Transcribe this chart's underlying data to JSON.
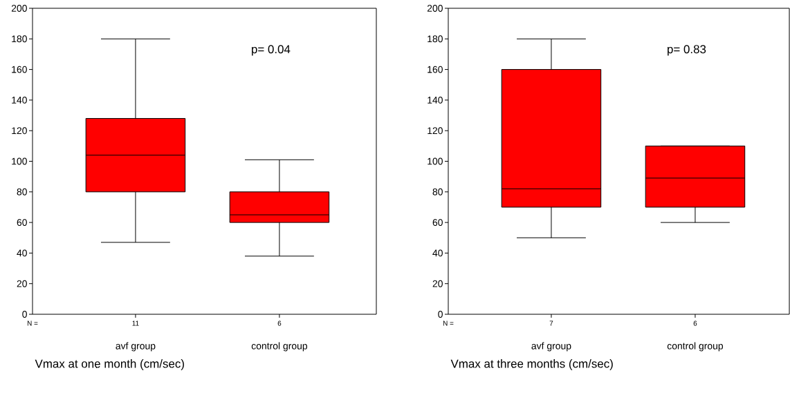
{
  "chart_data": [
    {
      "type": "box",
      "title": "Vmax at one month (cm/sec)",
      "categories": [
        "avf group",
        "control group"
      ],
      "color": "#ff0000",
      "boxes": [
        {
          "low": 47,
          "q1": 80,
          "median": 104,
          "q3": 128,
          "high": 180
        },
        {
          "low": 38,
          "q1": 60,
          "median": 65,
          "q3": 80,
          "high": 101
        }
      ],
      "ylim": [
        0,
        200
      ],
      "yticks": [
        0,
        20,
        40,
        60,
        80,
        100,
        120,
        140,
        160,
        180,
        200
      ],
      "annotations": [
        "p= 0.04",
        "N =",
        "11",
        "6"
      ]
    },
    {
      "type": "box",
      "title": "Vmax at three months (cm/sec)",
      "categories": [
        "avf group",
        "control group"
      ],
      "color": "#ff0000",
      "boxes": [
        {
          "low": 50,
          "q1": 70,
          "median": 82,
          "q3": 160,
          "high": 180
        },
        {
          "low": 60,
          "q1": 70,
          "median": 89,
          "q3": 110,
          "high": 110
        }
      ],
      "ylim": [
        0,
        200
      ],
      "yticks": [
        0,
        20,
        40,
        60,
        80,
        100,
        120,
        140,
        160,
        180,
        200
      ],
      "annotations": [
        "p= 0.83",
        "N =",
        "7",
        "6"
      ]
    }
  ]
}
